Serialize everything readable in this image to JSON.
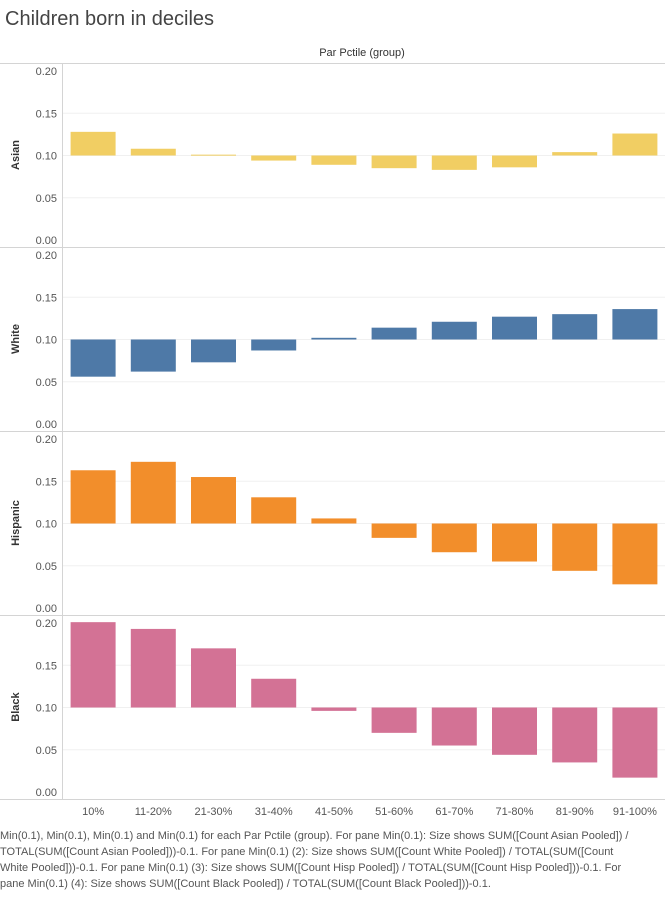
{
  "title": "Children born in deciles",
  "column_header": "Par Pctile (group)",
  "caption": "Min(0.1), Min(0.1), Min(0.1) and Min(0.1) for each Par Pctile (group).  For pane Min(0.1):  Size shows SUM([Count Asian Pooled]) / TOTAL(SUM([Count Asian Pooled]))-0.1.  For pane Min(0.1) (2):  Size shows SUM([Count White Pooled]) / TOTAL(SUM([Count White Pooled]))-0.1.  For pane Min(0.1) (3):  Size shows SUM([Count Hisp Pooled]) / TOTAL(SUM([Count Hisp Pooled]))-0.1.  For pane Min(0.1) (4):  Size shows SUM([Count Black Pooled]) / TOTAL(SUM([Count Black Pooled]))-0.1.",
  "chart_data": {
    "type": "bar",
    "title": "Children born in deciles",
    "xlabel": "Par Pctile (group)",
    "categories": [
      "10%",
      "11-20%",
      "21-30%",
      "31-40%",
      "41-50%",
      "51-60%",
      "61-70%",
      "71-80%",
      "81-90%",
      "91-100%"
    ],
    "baseline": 0.1,
    "ylim": [
      0,
      0.2
    ],
    "yticks": [
      "0.20",
      "0.15",
      "0.10",
      "0.05",
      "0.00"
    ],
    "grid": true,
    "series": [
      {
        "name": "Asian",
        "color": "#f1ce63",
        "values": [
          0.128,
          0.108,
          0.101,
          0.094,
          0.089,
          0.085,
          0.083,
          0.086,
          0.104,
          0.126
        ]
      },
      {
        "name": "White",
        "color": "#4e79a7",
        "values": [
          0.056,
          0.062,
          0.073,
          0.087,
          0.102,
          0.114,
          0.121,
          0.127,
          0.13,
          0.136
        ]
      },
      {
        "name": "Hispanic",
        "color": "#f28e2b",
        "values": [
          0.163,
          0.173,
          0.155,
          0.131,
          0.106,
          0.083,
          0.066,
          0.055,
          0.044,
          0.028
        ]
      },
      {
        "name": "Black",
        "color": "#d37295",
        "values": [
          0.201,
          0.193,
          0.17,
          0.134,
          0.096,
          0.07,
          0.055,
          0.044,
          0.035,
          0.017
        ]
      }
    ]
  }
}
